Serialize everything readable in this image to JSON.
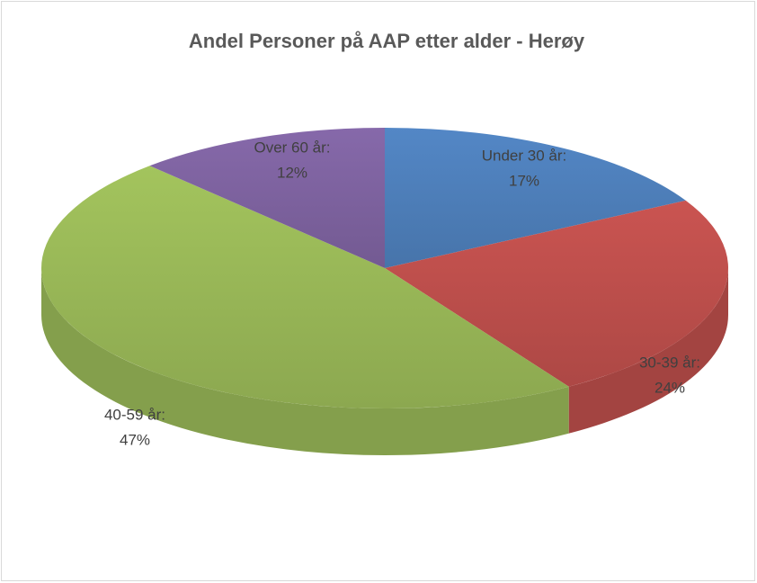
{
  "chart_data": {
    "type": "pie3d",
    "title": "Andel Personer på AAP etter alder - Herøy",
    "categories": [
      "Under 30 år:",
      "30-39 år:",
      "40-59 år:",
      "Over 60 år:"
    ],
    "values": [
      17,
      24,
      47,
      12
    ],
    "value_labels": [
      "17%",
      "24%",
      "47%",
      "12%"
    ],
    "colors": [
      "#4f81bd",
      "#c0504d",
      "#9bbb59",
      "#8064a2"
    ]
  }
}
